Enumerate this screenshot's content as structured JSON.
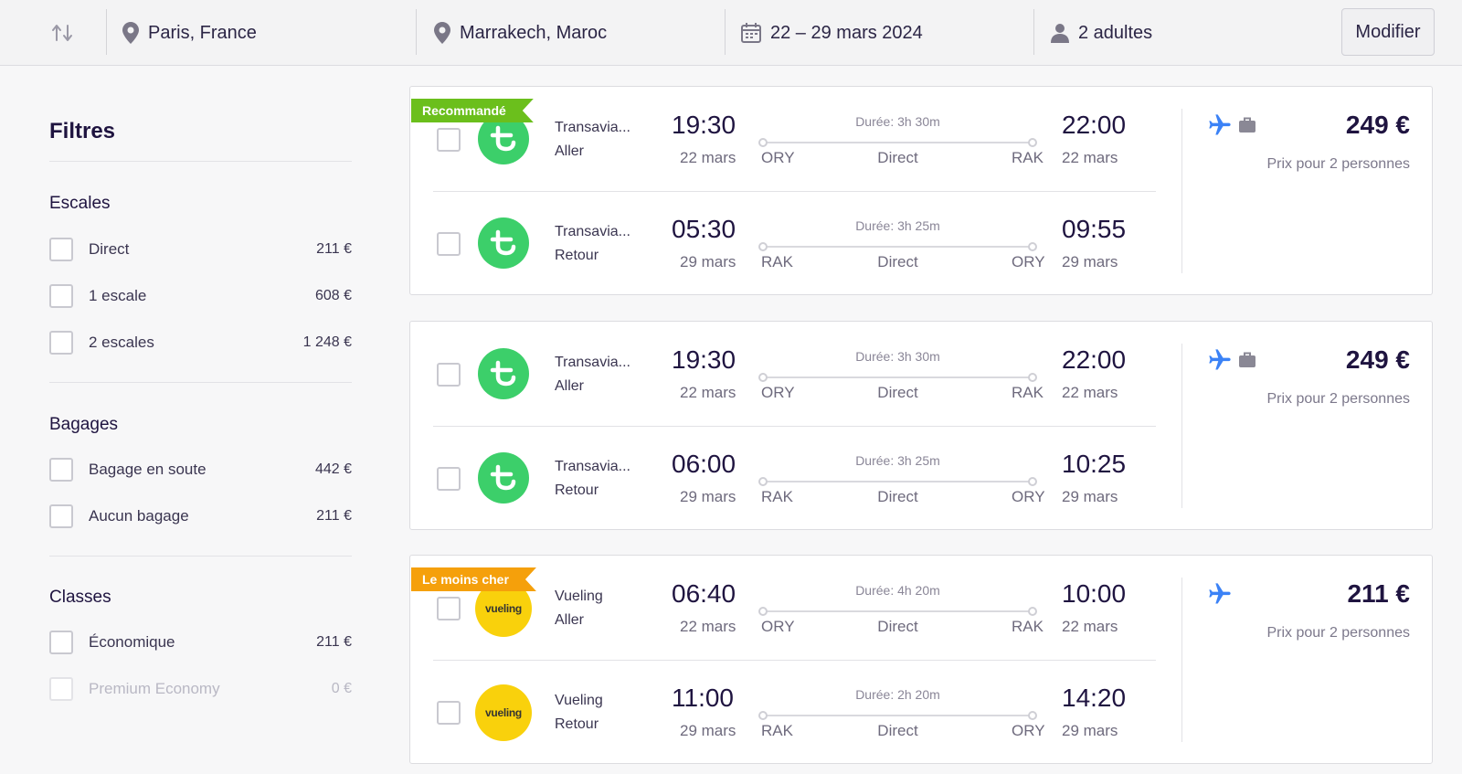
{
  "search": {
    "origin": "Paris, France",
    "destination": "Marrakech, Maroc",
    "dates": "22 – 29 mars 2024",
    "passengers": "2 adultes",
    "modify_label": "Modifier"
  },
  "filters": {
    "title": "Filtres",
    "stops": {
      "title": "Escales",
      "options": [
        {
          "label": "Direct",
          "price": "211 €"
        },
        {
          "label": "1 escale",
          "price": "608 €"
        },
        {
          "label": "2 escales",
          "price": "1 248 €"
        }
      ]
    },
    "baggage": {
      "title": "Bagages",
      "options": [
        {
          "label": "Bagage en soute",
          "price": "442 €"
        },
        {
          "label": "Aucun bagage",
          "price": "211 €"
        }
      ]
    },
    "classes": {
      "title": "Classes",
      "options": [
        {
          "label": "Économique",
          "price": "211 €"
        },
        {
          "label": "Premium Economy",
          "price": "0 €"
        }
      ]
    }
  },
  "results": [
    {
      "badge": "Recommandé",
      "badge_color": "#6bbf1c",
      "price": "249 €",
      "price_note": "Prix pour 2 personnes",
      "icons": [
        "airplane-icon",
        "suitcase-icon"
      ],
      "legs": [
        {
          "airline": "Transavia...",
          "direction": "Aller",
          "dep_time": "19:30",
          "dep_date": "22 mars",
          "from": "ORY",
          "duration": "Durée: 3h 30m",
          "stops": "Direct",
          "to": "RAK",
          "arr_time": "22:00",
          "arr_date": "22 mars"
        },
        {
          "airline": "Transavia...",
          "direction": "Retour",
          "dep_time": "05:30",
          "dep_date": "29 mars",
          "from": "RAK",
          "duration": "Durée: 3h 25m",
          "stops": "Direct",
          "to": "ORY",
          "arr_time": "09:55",
          "arr_date": "29 mars"
        }
      ]
    },
    {
      "badge": "",
      "price": "249 €",
      "price_note": "Prix pour 2 personnes",
      "icons": [
        "airplane-icon",
        "suitcase-icon"
      ],
      "legs": [
        {
          "airline": "Transavia...",
          "direction": "Aller",
          "dep_time": "19:30",
          "dep_date": "22 mars",
          "from": "ORY",
          "duration": "Durée: 3h 30m",
          "stops": "Direct",
          "to": "RAK",
          "arr_time": "22:00",
          "arr_date": "22 mars"
        },
        {
          "airline": "Transavia...",
          "direction": "Retour",
          "dep_time": "06:00",
          "dep_date": "29 mars",
          "from": "RAK",
          "duration": "Durée: 3h 25m",
          "stops": "Direct",
          "to": "ORY",
          "arr_time": "10:25",
          "arr_date": "29 mars"
        }
      ]
    },
    {
      "badge": "Le moins cher",
      "badge_color": "#f5a00b",
      "price": "211 €",
      "price_note": "Prix pour 2 personnes",
      "icons": [
        "airplane-icon"
      ],
      "legs": [
        {
          "airline": "Vueling",
          "logo_text": "vueling",
          "direction": "Aller",
          "dep_time": "06:40",
          "dep_date": "22 mars",
          "from": "ORY",
          "duration": "Durée: 4h 20m",
          "stops": "Direct",
          "to": "RAK",
          "arr_time": "10:00",
          "arr_date": "22 mars"
        },
        {
          "airline": "Vueling",
          "logo_text": "vueling",
          "direction": "Retour",
          "dep_time": "11:00",
          "dep_date": "29 mars",
          "from": "RAK",
          "duration": "Durée: 2h 20m",
          "stops": "Direct",
          "to": "ORY",
          "arr_time": "14:20",
          "arr_date": "29 mars"
        }
      ]
    }
  ],
  "colors": {
    "accent": "#1f1440",
    "transavia": "#3ccf6a",
    "vueling": "#f9d10c",
    "plane_icon": "#3b82f6"
  }
}
